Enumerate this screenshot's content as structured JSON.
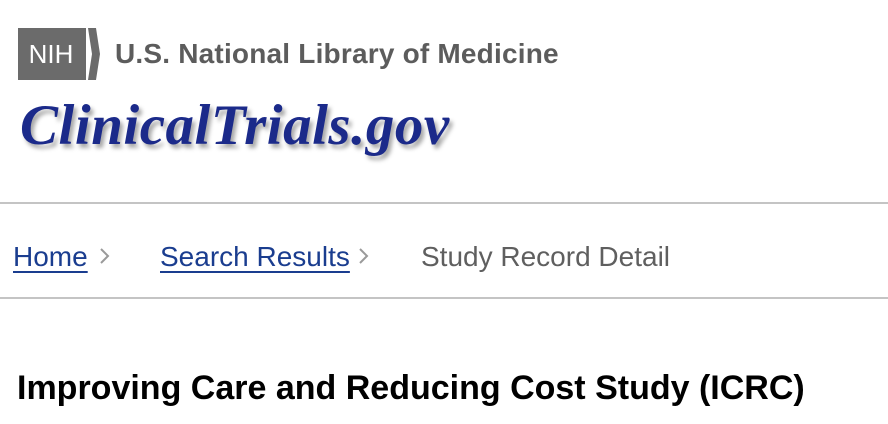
{
  "header": {
    "nih_badge": "NIH",
    "nih_label": "U.S. National Library of Medicine",
    "logo_text": "ClinicalTrials.gov",
    "logo_color": "#1b2a8a",
    "badge_color": "#6b6b6b"
  },
  "breadcrumb": {
    "items": [
      {
        "label": "Home"
      },
      {
        "label": "Search Results"
      },
      {
        "label": "Study Record Detail"
      }
    ],
    "separator_icon": "chevron-right-icon",
    "link_color": "#1a3d8f"
  },
  "main": {
    "title": "Improving Care and Reducing Cost Study (ICRC)"
  }
}
